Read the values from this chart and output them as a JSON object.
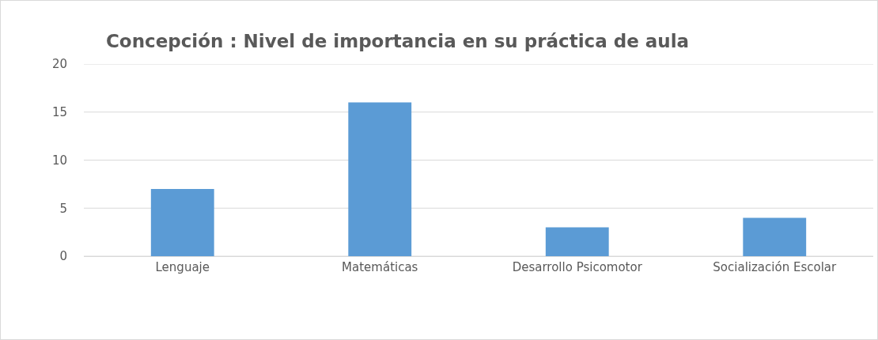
{
  "chart_data": {
    "type": "bar",
    "title": "Concepción : Nivel de importancia en su práctica de aula",
    "categories": [
      "Lenguaje",
      "Matemáticas",
      "Desarrollo Psicomotor",
      "Socialización Escolar"
    ],
    "values": [
      7,
      16,
      3,
      4
    ],
    "color": "#5b9bd5",
    "ylim": [
      0,
      20
    ],
    "yticks": [
      0,
      5,
      10,
      15,
      20
    ],
    "grid": "y"
  }
}
